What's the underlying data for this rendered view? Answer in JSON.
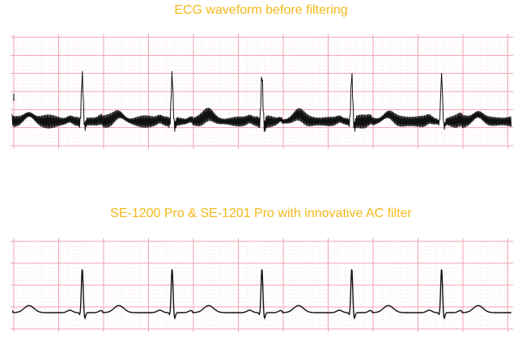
{
  "colors": {
    "title": "#f3b81a",
    "grid_major": "#f2a3b1",
    "grid_minor": "#f9d4db",
    "trace": "#111111"
  },
  "chart_data": [
    {
      "type": "line",
      "title": "ECG waveform before filtering",
      "lead_label": "I",
      "xlabel": "",
      "ylabel": "",
      "grid": true,
      "noise": "60Hz AC interference",
      "beats": 6,
      "rr_interval_boxes": 2.0,
      "r_peak_mv": 2.3,
      "t_wave_mv": 0.35,
      "p_wave_mv": 0.12,
      "noise_amplitude_mv": 0.35
    },
    {
      "type": "line",
      "title": "SE-1200 Pro & SE-1201 Pro with innovative AC filter",
      "xlabel": "",
      "ylabel": "",
      "grid": true,
      "noise": "none",
      "beats": 6,
      "rr_interval_boxes": 2.0,
      "r_peak_mv": 2.2,
      "t_wave_mv": 0.35,
      "p_wave_mv": 0.12,
      "noise_amplitude_mv": 0
    }
  ]
}
